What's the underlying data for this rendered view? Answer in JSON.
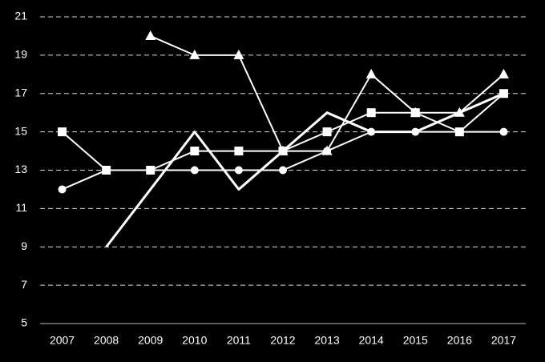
{
  "chart_data": {
    "type": "line",
    "categories": [
      "2007",
      "2008",
      "2009",
      "2010",
      "2011",
      "2012",
      "2013",
      "2014",
      "2015",
      "2016",
      "2017"
    ],
    "series": [
      {
        "color": "#ffffff",
        "marker": "circle",
        "line_width": 2,
        "values": [
          12,
          13,
          13,
          13,
          13,
          13,
          14,
          15,
          15,
          15,
          15
        ]
      },
      {
        "color": "#ffffff",
        "marker": "square",
        "line_width": 2,
        "values": [
          15,
          13,
          13,
          14,
          14,
          14,
          15,
          16,
          16,
          15,
          17
        ]
      },
      {
        "color": "#ffffff",
        "marker": "triangle",
        "line_width": 2,
        "values": [
          null,
          null,
          20,
          19,
          19,
          14,
          14,
          18,
          16,
          16,
          18
        ]
      },
      {
        "color": "#ffffff",
        "marker": "none",
        "line_width": 3,
        "values": [
          null,
          9,
          12,
          15,
          12,
          14,
          16,
          15,
          15,
          16,
          17
        ]
      }
    ],
    "ylim": [
      5,
      21
    ],
    "yticks": [
      5,
      7,
      9,
      11,
      13,
      15,
      17,
      19,
      21
    ],
    "grid": true
  }
}
